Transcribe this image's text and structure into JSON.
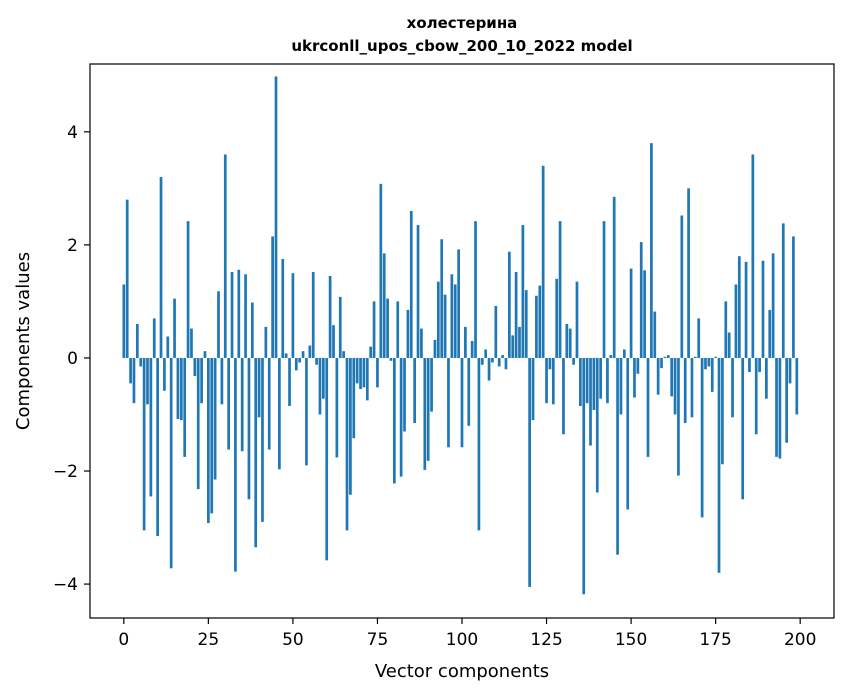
{
  "chart_data": {
    "type": "bar",
    "title_line1": "холестерина",
    "title_line2": "ukrconll_upos_cbow_200_10_2022 model",
    "xlabel": "Vector components",
    "ylabel": "Components values",
    "xlim": [
      -10,
      210
    ],
    "ylim": [
      -4.6,
      5.2
    ],
    "xticks": [
      0,
      25,
      50,
      75,
      100,
      125,
      150,
      175,
      200
    ],
    "xtick_labels": [
      "0",
      "25",
      "50",
      "75",
      "100",
      "125",
      "150",
      "175",
      "200"
    ],
    "yticks": [
      -4,
      -2,
      0,
      2,
      4
    ],
    "ytick_labels": [
      "−4",
      "−2",
      "0",
      "2",
      "4"
    ],
    "grid": false,
    "bar_color": "#1f77b4",
    "x": [
      0,
      1,
      2,
      3,
      4,
      5,
      6,
      7,
      8,
      9,
      10,
      11,
      12,
      13,
      14,
      15,
      16,
      17,
      18,
      19,
      20,
      21,
      22,
      23,
      24,
      25,
      26,
      27,
      28,
      29,
      30,
      31,
      32,
      33,
      34,
      35,
      36,
      37,
      38,
      39,
      40,
      41,
      42,
      43,
      44,
      45,
      46,
      47,
      48,
      49,
      50,
      51,
      52,
      53,
      54,
      55,
      56,
      57,
      58,
      59,
      60,
      61,
      62,
      63,
      64,
      65,
      66,
      67,
      68,
      69,
      70,
      71,
      72,
      73,
      74,
      75,
      76,
      77,
      78,
      79,
      80,
      81,
      82,
      83,
      84,
      85,
      86,
      87,
      88,
      89,
      90,
      91,
      92,
      93,
      94,
      95,
      96,
      97,
      98,
      99,
      100,
      101,
      102,
      103,
      104,
      105,
      106,
      107,
      108,
      109,
      110,
      111,
      112,
      113,
      114,
      115,
      116,
      117,
      118,
      119,
      120,
      121,
      122,
      123,
      124,
      125,
      126,
      127,
      128,
      129,
      130,
      131,
      132,
      133,
      134,
      135,
      136,
      137,
      138,
      139,
      140,
      141,
      142,
      143,
      144,
      145,
      146,
      147,
      148,
      149,
      150,
      151,
      152,
      153,
      154,
      155,
      156,
      157,
      158,
      159,
      160,
      161,
      162,
      163,
      164,
      165,
      166,
      167,
      168,
      169,
      170,
      171,
      172,
      173,
      174,
      175,
      176,
      177,
      178,
      179,
      180,
      181,
      182,
      183,
      184,
      185,
      186,
      187,
      188,
      189,
      190,
      191,
      192,
      193,
      194,
      195,
      196,
      197,
      198,
      199
    ],
    "values": [
      1.3,
      2.8,
      -0.45,
      -0.8,
      0.6,
      -0.15,
      -3.05,
      -0.82,
      -2.45,
      0.7,
      -3.15,
      3.2,
      -0.58,
      0.38,
      -3.72,
      1.05,
      -1.08,
      -1.1,
      -1.75,
      2.42,
      0.52,
      -0.32,
      -2.32,
      -0.8,
      0.12,
      -2.92,
      -2.75,
      -2.15,
      1.18,
      -0.82,
      3.6,
      -1.62,
      1.52,
      -3.78,
      1.56,
      -1.65,
      1.48,
      -2.5,
      0.98,
      -3.35,
      -1.05,
      -2.9,
      0.55,
      -1.62,
      2.15,
      4.98,
      -1.97,
      1.75,
      0.08,
      -0.85,
      1.5,
      -0.22,
      -0.08,
      0.12,
      -1.9,
      0.22,
      1.52,
      -0.12,
      -1.0,
      -0.72,
      -3.58,
      1.45,
      0.58,
      -1.76,
      1.08,
      0.12,
      -3.05,
      -2.42,
      -1.42,
      -0.45,
      -0.55,
      -0.52,
      -0.75,
      0.2,
      1.0,
      -0.52,
      3.08,
      1.85,
      1.05,
      -0.05,
      -2.22,
      1.0,
      -2.1,
      -1.3,
      0.85,
      2.6,
      -1.15,
      2.35,
      0.52,
      -1.98,
      -1.82,
      -0.95,
      0.32,
      1.35,
      2.1,
      1.12,
      -1.58,
      1.48,
      1.3,
      1.92,
      -1.58,
      0.55,
      -1.2,
      0.3,
      2.42,
      -3.05,
      -0.12,
      0.15,
      -0.4,
      -0.08,
      0.92,
      -0.15,
      0.05,
      -0.2,
      1.88,
      0.4,
      1.52,
      0.55,
      2.35,
      1.2,
      -4.05,
      -1.1,
      1.1,
      1.28,
      3.4,
      -0.8,
      -0.2,
      -0.82,
      1.4,
      2.42,
      -1.35,
      0.6,
      0.52,
      -0.12,
      1.35,
      -0.85,
      -4.18,
      -0.8,
      -1.55,
      -0.92,
      -2.38,
      -0.72,
      2.42,
      -0.8,
      0.05,
      2.85,
      -3.48,
      -1.0,
      0.15,
      -2.68,
      1.58,
      -0.7,
      -0.28,
      2.05,
      1.55,
      -1.75,
      3.8,
      0.82,
      -0.65,
      -0.18,
      0.02,
      0.05,
      -0.68,
      -1.0,
      -2.08,
      2.52,
      -1.15,
      3.0,
      -1.05,
      0.02,
      0.7,
      -2.82,
      -0.2,
      -0.15,
      -0.6,
      0.02,
      -3.8,
      -1.88,
      1.0,
      0.45,
      -1.05,
      1.3,
      1.8,
      -2.5,
      1.7,
      -0.25,
      3.6,
      -1.35,
      -0.25,
      1.72,
      -0.72,
      0.85,
      1.85,
      -1.75,
      -1.78,
      2.38,
      -1.5,
      -0.45,
      2.15,
      -1.0
    ]
  }
}
